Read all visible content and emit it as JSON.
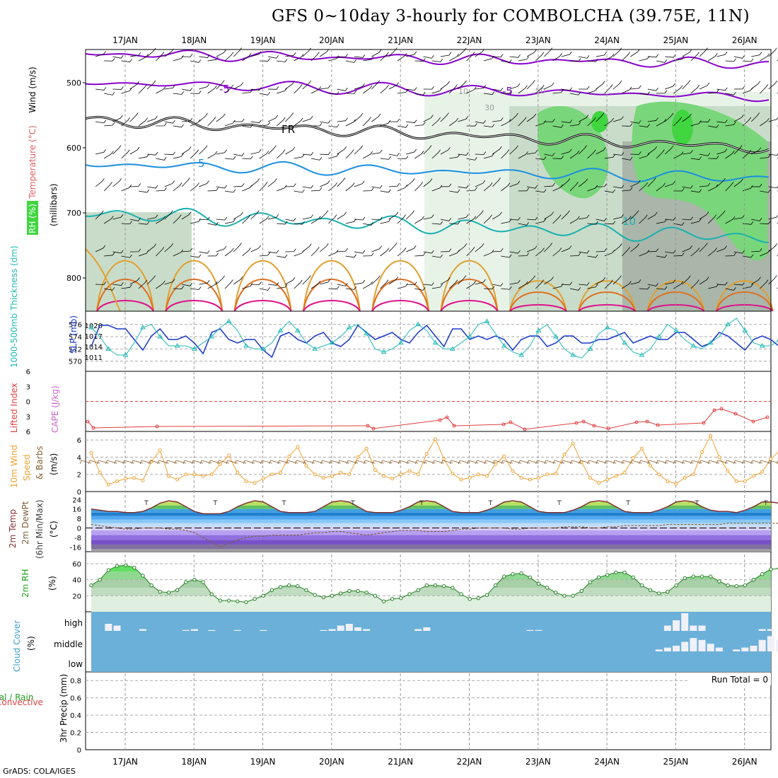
{
  "title": "GFS 0~10day 3-hourly for COMBOLCHA (39.75E, 11N)",
  "credit": "GrADS: COLA/IGES",
  "dates": [
    "17JAN",
    "18JAN",
    "19JAN",
    "20JAN",
    "21JAN",
    "22JAN",
    "23JAN",
    "24JAN",
    "25JAN",
    "26JAN"
  ],
  "colors": {
    "rh_light": "#e8f3e8",
    "rh_mid": "#c9dcc9",
    "rh_gray": "#a9b6a9",
    "rh_green": "#7ad67a",
    "rh_bright": "#3fd63f",
    "violet": "#8800cc",
    "cyan_blue": "#1a8fe0",
    "teal": "#1ab0b0",
    "orange": "#e0a030",
    "dark_orange": "#e07020",
    "magenta": "#e0108a",
    "slp_blue": "#1838c8",
    "thick_cyan": "#20b8b8",
    "red": "#e04040",
    "wind_orange": "#f0a030",
    "cloud_blue": "#6ab0d8"
  },
  "chart_data": [
    {
      "panel": "upper_air",
      "type": "contour",
      "ylabel_parts": [
        "RH (%)",
        "Temperature (°C)",
        "Wind (m/s)"
      ],
      "ylabel2": "(millibars)",
      "y_ticks": [
        500,
        600,
        700,
        800
      ],
      "ylim": [
        850,
        450
      ],
      "contour_labels": [
        "-5",
        "-5",
        "FR",
        "5",
        "10",
        "10",
        "30",
        "50"
      ]
    },
    {
      "panel": "slp_thickness",
      "type": "line",
      "ylabel_left": "1000-500mb Thickness (dm)",
      "ylabel_right": "SLP (mb)",
      "left_ticks": [
        576,
        574,
        572,
        570
      ],
      "right_ticks": [
        1020,
        1017,
        1014,
        1011
      ],
      "series": [
        {
          "name": "SLP (mb)",
          "values": [
            1014,
            1020,
            1020,
            1019,
            1019,
            1016,
            1013,
            1017,
            1019,
            1016,
            1016,
            1017,
            1015,
            1012,
            1018,
            1019,
            1016,
            1015,
            1016,
            1016,
            1013,
            1011,
            1017,
            1018,
            1016,
            1015,
            1017,
            1018,
            1015,
            1014,
            1016,
            1020,
            1018,
            1016,
            1017,
            1018,
            1016,
            1015,
            1018,
            1020,
            1017,
            1014,
            1019,
            1019,
            1016,
            1017,
            1016,
            1017,
            1016,
            1013,
            1016,
            1017,
            1017,
            1014,
            1015,
            1017,
            1017,
            1015,
            1015,
            1016,
            1016,
            1017,
            1018,
            1015,
            1016,
            1017,
            1016,
            1016,
            1018,
            1018,
            1016,
            1014,
            1015,
            1018,
            1017,
            1015,
            1013,
            1016,
            1017,
            1016,
            1014,
            1011,
            1014,
            1016,
            1016,
            1014,
            1013,
            1015,
            1016,
            1014,
            1015,
            1018,
            1019,
            1019,
            1020
          ]
        },
        {
          "name": "1000-500mb Thickness (dm)",
          "values": [
            575.5,
            574,
            572,
            571,
            571,
            573,
            575.5,
            576,
            574,
            572.5,
            572.5,
            572.5,
            572,
            573,
            574,
            575.5,
            576.5,
            575,
            572.5,
            572,
            572,
            573,
            575,
            576.5,
            575,
            573,
            572,
            572.5,
            573,
            574,
            575.5,
            576,
            574.5,
            572,
            571.5,
            572,
            573,
            575,
            576,
            575,
            573,
            572,
            572,
            573,
            574,
            576,
            576.5,
            574.5,
            572.5,
            571.5,
            571,
            572.5,
            575,
            576,
            574,
            572,
            571,
            570.5,
            572,
            574.5,
            575.5,
            575,
            573,
            571.5,
            571,
            572,
            574,
            576,
            575,
            573.5,
            572.5,
            572,
            573,
            574,
            576,
            577,
            575,
            573,
            572.5,
            572.5,
            573.5,
            575,
            575.5,
            574,
            572,
            571,
            570.5,
            572,
            574.5,
            575,
            573,
            571.5,
            571,
            570.5,
            572.5
          ]
        }
      ]
    },
    {
      "panel": "lifted_index_cape",
      "type": "line",
      "ylabel_parts": [
        "Lifted Index",
        "CAPE (J/kg)"
      ],
      "y_ticks": [
        -6,
        -3,
        0,
        3,
        6
      ],
      "series": [
        {
          "name": "Lifted Index",
          "segments": [
            [
              0,
              0,
              4
            ],
            [
              0,
              1,
              6
            ]
          ],
          "note": ""
        }
      ]
    },
    {
      "panel": "wind10m",
      "type": "line",
      "ylabel_parts": [
        "10m Wind",
        "Speed",
        "& Barbs",
        "(m/s)"
      ],
      "y_ticks": [
        0,
        2,
        4,
        6
      ],
      "series": [
        {
          "name": "10m Wind Speed",
          "values": [
            4.5,
            2.2,
            0.8,
            1.2,
            1.5,
            1.6,
            1.3,
            3.5,
            4.8,
            1.8,
            1.4,
            2.0,
            2.0,
            1.8,
            2.0,
            3.2,
            4.2,
            2.2,
            1.2,
            1.0,
            1.5,
            2.0,
            2.2,
            4.1,
            5.2,
            3.0,
            2.0,
            1.6,
            1.8,
            2.2,
            2.0,
            4.0,
            5.0,
            2.5,
            1.8,
            1.5,
            2.0,
            2.4,
            2.0,
            4.4,
            6.1,
            3.8,
            2.1,
            1.4,
            1.6,
            2.0,
            1.8,
            3.2,
            4.1,
            2.4,
            1.6,
            1.4,
            1.6,
            2.0,
            2.1,
            4.3,
            5.6,
            3.4,
            1.6,
            1.0,
            1.4,
            1.8,
            2.2,
            3.9,
            5.0,
            3.0,
            2.0,
            1.2,
            0.9,
            1.6,
            2.0,
            4.6,
            6.5,
            4.0,
            2.4,
            1.2,
            1.2,
            1.8,
            2.3,
            3.8,
            4.7,
            2.8,
            1.8,
            0.9,
            0.6,
            1.2,
            2.3,
            4.4,
            5.1,
            3.1,
            1.8,
            0.6,
            0.5,
            1.4,
            2.1
          ]
        }
      ]
    },
    {
      "panel": "temp2m",
      "type": "line",
      "ylabel_parts": [
        "2m Temp",
        "2m DewPt",
        "(6hr Min/Max)",
        "(°C)"
      ],
      "y_ticks": [
        24,
        16,
        8,
        0,
        -8,
        -16
      ],
      "series": [
        {
          "name": "2m Temp",
          "values": [
            16,
            15,
            14,
            14,
            13,
            13,
            14,
            17,
            21,
            23,
            22,
            18,
            14,
            12,
            12,
            12,
            14,
            18,
            21,
            23,
            22,
            18,
            14,
            13,
            13,
            13,
            14,
            18,
            22,
            23,
            22,
            18,
            14,
            13,
            13,
            13,
            15,
            18,
            22,
            23,
            22,
            18,
            14,
            13,
            13,
            13,
            15,
            18,
            22,
            23,
            22,
            18,
            14,
            13,
            13,
            13,
            15,
            18,
            22,
            23,
            22,
            18,
            14,
            13,
            13,
            13,
            15,
            18,
            22,
            23,
            22,
            18,
            15,
            14,
            14,
            13,
            15,
            18,
            22,
            22,
            21,
            18,
            15,
            14,
            14,
            13,
            15,
            18,
            21,
            22,
            21,
            18,
            15,
            14,
            14,
            13,
            15,
            17
          ]
        },
        {
          "name": "2m DewPt",
          "values": [
            3,
            2,
            1,
            0,
            -1,
            -1,
            0,
            0,
            0,
            -1,
            -1,
            -2,
            -4,
            -8,
            -12,
            -16,
            -13,
            -10,
            -8,
            -7,
            -7,
            -6,
            -6,
            -6,
            -6,
            -5,
            -4,
            -4,
            -3,
            -3,
            -4,
            -5,
            -6,
            -5,
            -4,
            -3,
            -2,
            -2,
            -2,
            -3,
            -3,
            -3,
            -2,
            -1,
            -1,
            0,
            0,
            0,
            0,
            -1,
            -1,
            0,
            0,
            0,
            0,
            1,
            1,
            1,
            0,
            0,
            1,
            1,
            2,
            2,
            2,
            2,
            2,
            3,
            3,
            3,
            3,
            3,
            3,
            3,
            4,
            4,
            4,
            4,
            4,
            4,
            4,
            5,
            5,
            5,
            5,
            5,
            5,
            5,
            5,
            5,
            6,
            6,
            6,
            6,
            6,
            6,
            6
          ]
        }
      ]
    },
    {
      "panel": "rh2m",
      "type": "area",
      "ylabel_parts": [
        "2m RH",
        "(%)"
      ],
      "y_ticks": [
        60,
        40,
        20
      ],
      "series": [
        {
          "name": "2m RH",
          "values": [
            33,
            40,
            52,
            57,
            58,
            55,
            45,
            33,
            25,
            24,
            27,
            37,
            40,
            37,
            22,
            14,
            14,
            13,
            12,
            16,
            20,
            27,
            31,
            33,
            32,
            27,
            21,
            18,
            20,
            23,
            26,
            26,
            24,
            20,
            13,
            16,
            17,
            22,
            27,
            33,
            33,
            32,
            30,
            22,
            16,
            17,
            21,
            33,
            44,
            47,
            48,
            43,
            35,
            30,
            24,
            20,
            20,
            26,
            37,
            43,
            46,
            49,
            49,
            43,
            33,
            27,
            23,
            25,
            33,
            42,
            44,
            44,
            44,
            38,
            33,
            32,
            33,
            40,
            47,
            53,
            54,
            52,
            52,
            46,
            38,
            37,
            44,
            54,
            64,
            68,
            71,
            71,
            68,
            57,
            50
          ]
        }
      ]
    },
    {
      "panel": "cloud",
      "type": "bar",
      "ylabel_parts": [
        "Cloud Cover",
        "(%)"
      ],
      "levels": [
        "high",
        "middle",
        "low"
      ],
      "series": [
        {
          "name": "high",
          "values": [
            0,
            0,
            40,
            30,
            0,
            0,
            10,
            0,
            0,
            0,
            0,
            5,
            10,
            0,
            5,
            0,
            0,
            5,
            0,
            0,
            5,
            0,
            0,
            0,
            0,
            0,
            0,
            5,
            10,
            30,
            40,
            20,
            10,
            0,
            0,
            0,
            0,
            0,
            10,
            20,
            0,
            0,
            0,
            0,
            0,
            0,
            0,
            0,
            0,
            0,
            0,
            5,
            5,
            0,
            0,
            0,
            0,
            0,
            0,
            0,
            0,
            0,
            0,
            0,
            0,
            0,
            0,
            30,
            60,
            100,
            30,
            30,
            0,
            0,
            0,
            0,
            0,
            0,
            10,
            10,
            0,
            0,
            0,
            0,
            0,
            20,
            50,
            60,
            80,
            90,
            100,
            0,
            0,
            0,
            0,
            30,
            30,
            0,
            0,
            0,
            0
          ]
        },
        {
          "name": "middle",
          "values": [
            0,
            0,
            0,
            0,
            0,
            0,
            0,
            0,
            0,
            0,
            0,
            0,
            0,
            0,
            0,
            0,
            0,
            0,
            0,
            0,
            0,
            0,
            0,
            0,
            0,
            0,
            0,
            0,
            0,
            0,
            0,
            0,
            0,
            0,
            0,
            0,
            0,
            0,
            0,
            0,
            0,
            0,
            0,
            0,
            0,
            0,
            0,
            0,
            0,
            0,
            0,
            0,
            0,
            0,
            0,
            0,
            0,
            0,
            0,
            0,
            0,
            0,
            0,
            0,
            0,
            0,
            10,
            20,
            30,
            50,
            70,
            60,
            40,
            20,
            0,
            10,
            20,
            30,
            60,
            80,
            60,
            40,
            20,
            10,
            0,
            0,
            0,
            0,
            0,
            20,
            30,
            20,
            0,
            0,
            0,
            0,
            20,
            30,
            0,
            0
          ]
        },
        {
          "name": "low",
          "values": [
            0,
            0,
            0,
            0,
            0,
            0,
            0,
            0,
            0,
            0,
            0,
            0,
            0,
            0,
            0,
            0,
            0,
            0,
            0,
            0,
            0,
            0,
            0,
            0,
            0,
            0,
            0,
            0,
            0,
            0,
            0,
            0,
            0,
            0,
            0,
            0,
            0,
            0,
            0,
            0,
            0,
            0,
            0,
            0,
            0,
            0,
            0,
            0,
            0,
            0,
            0,
            0,
            0,
            0,
            0,
            0,
            0,
            0,
            0,
            0,
            0,
            0,
            0,
            0,
            0,
            0,
            0,
            0,
            0,
            0,
            0,
            0,
            0,
            0,
            0,
            0,
            0,
            0,
            0,
            0,
            0,
            0,
            0,
            0,
            0,
            0,
            0,
            0,
            0,
            0,
            40,
            20,
            0,
            0,
            0,
            0,
            0,
            0,
            0
          ]
        }
      ]
    },
    {
      "panel": "precip",
      "type": "bar",
      "ylabel_parts": [
        "Total / Rain",
        "Convective",
        "3hr Precip (mm)"
      ],
      "y_ticks": [
        0,
        0.2,
        0.4,
        0.6,
        0.8
      ],
      "run_total": "Run Total = 0",
      "series": [
        {
          "name": "precip",
          "values": []
        }
      ]
    }
  ]
}
